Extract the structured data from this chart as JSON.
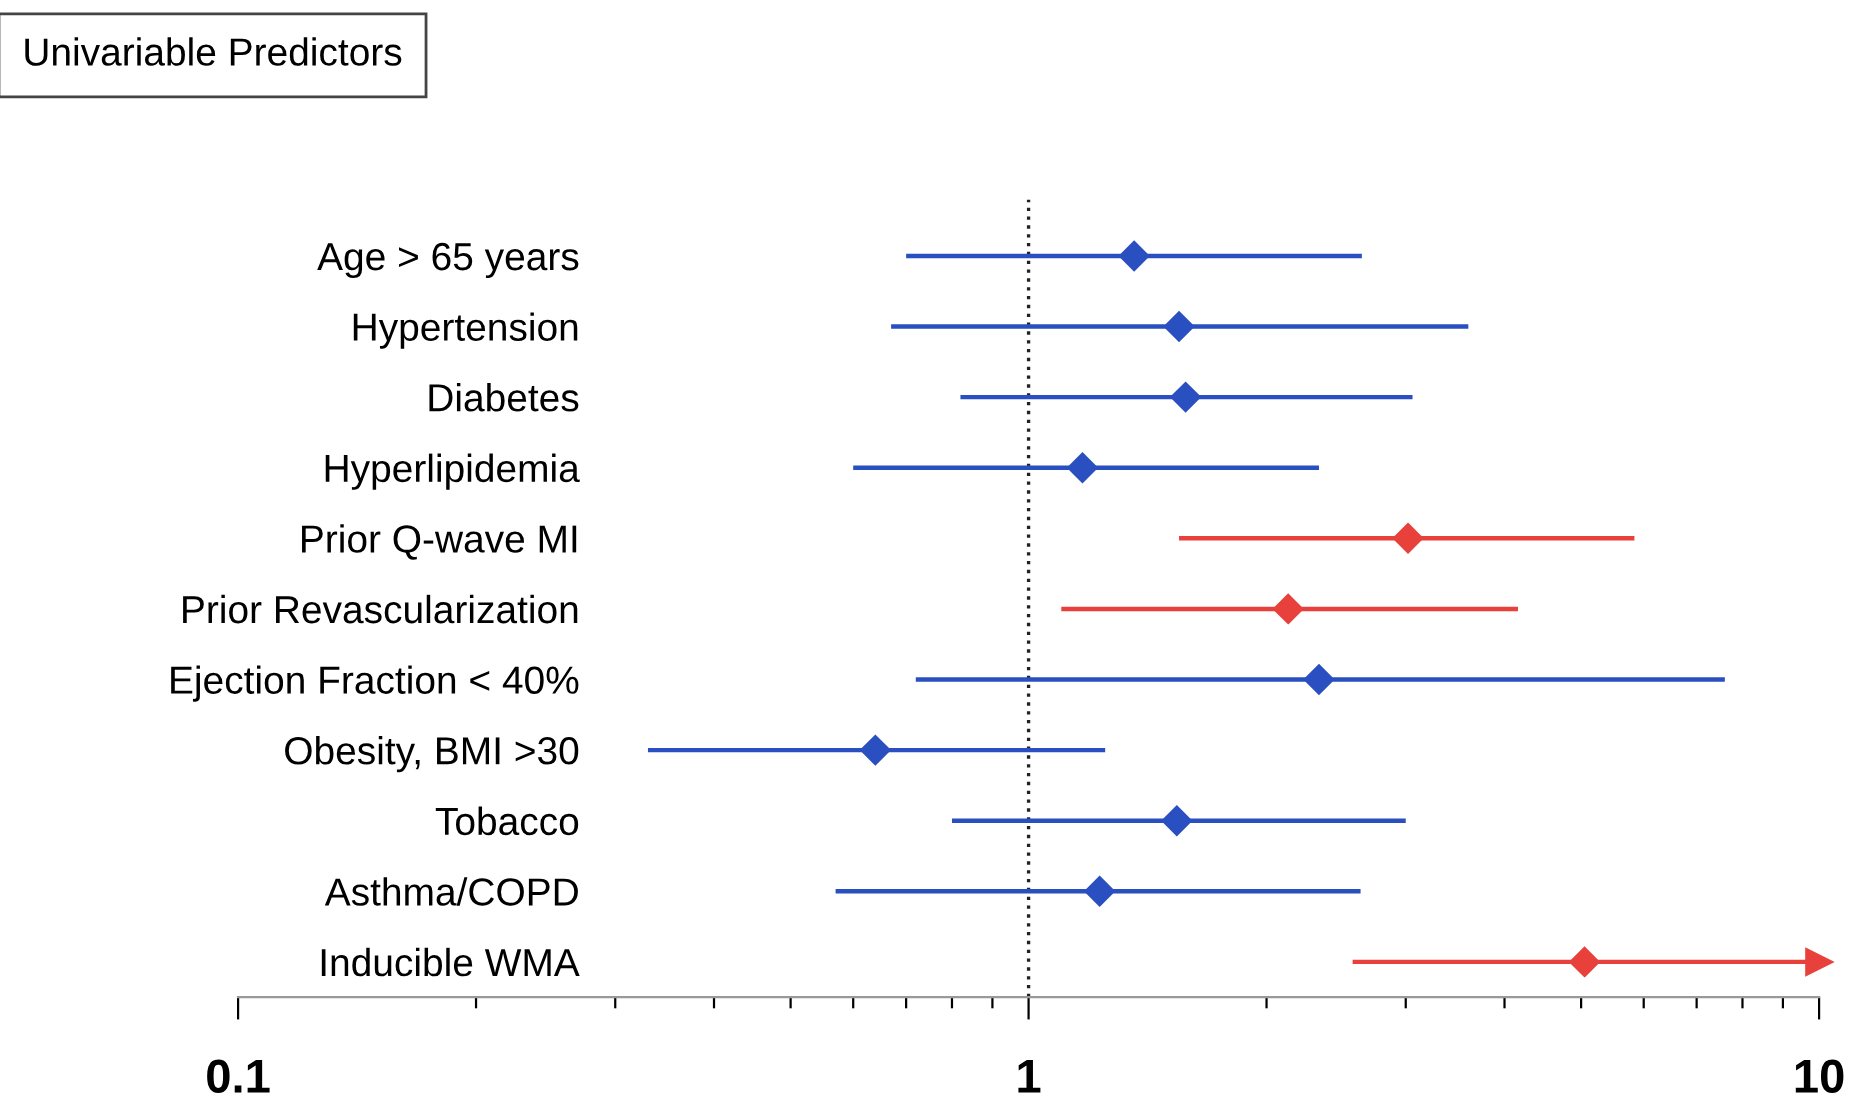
{
  "chart_data": {
    "type": "scatter",
    "orientation": "horizontal",
    "title": "Univariable Predictors",
    "categories": [
      "Age > 65 years",
      "Hypertension",
      "Diabetes",
      "Hyperlipidemia",
      "Prior Q-wave MI",
      "Prior Revascularization",
      "Ejection Fraction < 40%",
      "Obesity, BMI >30",
      "Tobacco",
      "Asthma/COPD",
      "Inducible WMA"
    ],
    "series": [
      {
        "color": "#2a4fc0",
        "values": [
          1.36,
          1.55,
          1.58,
          1.17,
          null,
          null,
          2.33,
          0.64,
          1.54,
          1.23,
          null
        ],
        "errors": [
          [
            0.7,
            2.64
          ],
          [
            0.67,
            3.6
          ],
          [
            0.82,
            3.06
          ],
          [
            0.6,
            2.33
          ],
          null,
          null,
          [
            0.72,
            7.6
          ],
          [
            0.33,
            1.25
          ],
          [
            0.8,
            3.0
          ],
          [
            0.57,
            2.63
          ],
          null
        ]
      },
      {
        "color": "#e8413c",
        "values": [
          null,
          null,
          null,
          null,
          3.02,
          2.13,
          null,
          null,
          null,
          null,
          5.05
        ],
        "errors": [
          null,
          null,
          null,
          null,
          [
            1.55,
            5.84
          ],
          [
            1.1,
            4.16
          ],
          null,
          null,
          null,
          null,
          [
            2.57,
            10
          ]
        ]
      }
    ],
    "log": "x",
    "marker": "diamond",
    "grid": false,
    "legend": false,
    "xlim": [
      0.1,
      10
    ],
    "xticks": [
      0.1,
      {
        "value": 0.2,
        "label": null
      },
      {
        "value": 0.3,
        "label": null
      },
      {
        "value": 0.4,
        "label": null
      },
      {
        "value": 0.5,
        "label": null
      },
      {
        "value": 0.6,
        "label": null
      },
      {
        "value": 0.7,
        "label": null
      },
      {
        "value": 0.8,
        "label": null
      },
      {
        "value": 0.9,
        "label": null
      },
      1,
      {
        "value": 2,
        "label": null
      },
      {
        "value": 3,
        "label": null
      },
      {
        "value": 4,
        "label": null
      },
      {
        "value": 5,
        "label": null
      },
      {
        "value": 6,
        "label": null
      },
      {
        "value": 7,
        "label": null
      },
      {
        "value": 8,
        "label": null
      },
      {
        "value": 9,
        "label": null
      },
      10
    ],
    "ref_lines": [
      {
        "axis": "x",
        "value": 1,
        "line_style": "dotted",
        "color": "#222222"
      }
    ]
  }
}
